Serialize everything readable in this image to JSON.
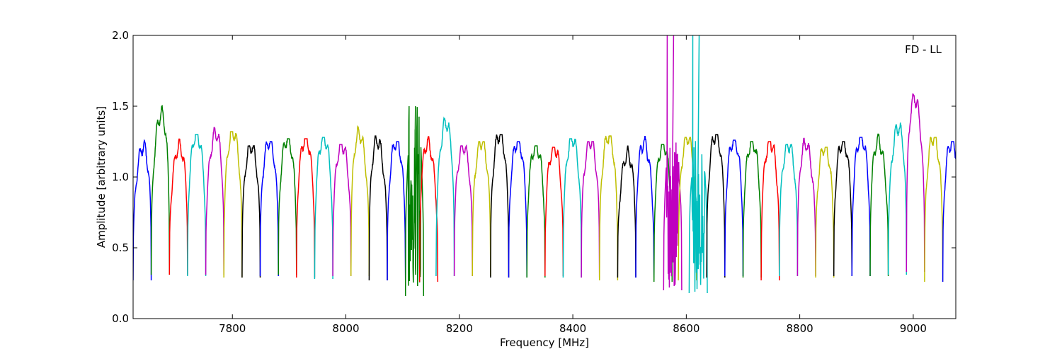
{
  "chart_data": {
    "type": "line",
    "title": "",
    "annotation": "FD - LL",
    "xlabel": "Frequency [MHz]",
    "ylabel": "Amplitude [arbitrary units]",
    "xlim": [
      7625,
      9075
    ],
    "ylim": [
      0.0,
      2.0
    ],
    "x_ticks": [
      7800,
      8000,
      8200,
      8400,
      8600,
      8800,
      9000
    ],
    "x_tick_labels": [
      "7800",
      "8000",
      "8200",
      "8400",
      "8600",
      "8800",
      "9000"
    ],
    "y_ticks": [
      0.0,
      0.5,
      1.0,
      1.5,
      2.0
    ],
    "y_tick_labels": [
      "0.0",
      "0.5",
      "1.0",
      "1.5",
      "2.0"
    ],
    "grid": false,
    "legend": "none",
    "channel_width_mhz": 32,
    "color_cycle": [
      "#0000ff",
      "#008000",
      "#ff0000",
      "#00bfbf",
      "#bf00bf",
      "#bfbf00",
      "#000000"
    ],
    "series": [
      {
        "x_start": 7625,
        "peak": 1.3,
        "min": 0.27,
        "color": "#0000ff",
        "shape": "rising"
      },
      {
        "x_start": 7657,
        "peak": 1.55,
        "min": 0.31,
        "color": "#008000",
        "shape": "rising"
      },
      {
        "x_start": 7689,
        "peak": 1.3,
        "min": 0.31,
        "color": "#ff0000",
        "shape": "rising"
      },
      {
        "x_start": 7721,
        "peak": 1.3,
        "min": 0.3,
        "color": "#00bfbf",
        "shape": "plateau"
      },
      {
        "x_start": 7753,
        "peak": 1.4,
        "min": 0.31,
        "color": "#bf00bf",
        "shape": "rising"
      },
      {
        "x_start": 7785,
        "peak": 1.32,
        "min": 0.29,
        "color": "#bfbf00",
        "shape": "plateau"
      },
      {
        "x_start": 7817,
        "peak": 1.22,
        "min": 0.29,
        "color": "#000000",
        "shape": "plateau"
      },
      {
        "x_start": 7849,
        "peak": 1.25,
        "min": 0.3,
        "color": "#0000ff",
        "shape": "plateau"
      },
      {
        "x_start": 7881,
        "peak": 1.27,
        "min": 0.31,
        "color": "#008000",
        "shape": "plateau"
      },
      {
        "x_start": 7913,
        "peak": 1.27,
        "min": 0.29,
        "color": "#ff0000",
        "shape": "plateau"
      },
      {
        "x_start": 7945,
        "peak": 1.28,
        "min": 0.28,
        "color": "#00bfbf",
        "shape": "plateau"
      },
      {
        "x_start": 7977,
        "peak": 1.23,
        "min": 0.3,
        "color": "#bf00bf",
        "shape": "plateau"
      },
      {
        "x_start": 8009,
        "peak": 1.4,
        "min": 0.3,
        "color": "#bfbf00",
        "shape": "falling"
      },
      {
        "x_start": 8041,
        "peak": 1.35,
        "min": 0.27,
        "color": "#000000",
        "shape": "falling"
      },
      {
        "x_start": 8073,
        "peak": 1.25,
        "min": 0.27,
        "color": "#0000ff",
        "shape": "plateau"
      },
      {
        "x_start": 8105,
        "peak": 1.5,
        "min": 0.16,
        "color": "#008000",
        "shape": "spiky"
      },
      {
        "x_start": 8130,
        "peak": 1.33,
        "min": 0.26,
        "color": "#ff0000",
        "shape": "falling"
      },
      {
        "x_start": 8159,
        "peak": 1.48,
        "min": 0.3,
        "color": "#00bfbf",
        "shape": "rising"
      },
      {
        "x_start": 8191,
        "peak": 1.22,
        "min": 0.3,
        "color": "#bf00bf",
        "shape": "plateau"
      },
      {
        "x_start": 8223,
        "peak": 1.25,
        "min": 0.3,
        "color": "#bfbf00",
        "shape": "plateau"
      },
      {
        "x_start": 8255,
        "peak": 1.3,
        "min": 0.29,
        "color": "#000000",
        "shape": "plateau"
      },
      {
        "x_start": 8287,
        "peak": 1.25,
        "min": 0.29,
        "color": "#0000ff",
        "shape": "plateau"
      },
      {
        "x_start": 8319,
        "peak": 1.22,
        "min": 0.29,
        "color": "#008000",
        "shape": "plateau"
      },
      {
        "x_start": 8351,
        "peak": 1.21,
        "min": 0.3,
        "color": "#ff0000",
        "shape": "plateau"
      },
      {
        "x_start": 8383,
        "peak": 1.27,
        "min": 0.29,
        "color": "#00bfbf",
        "shape": "plateau"
      },
      {
        "x_start": 8415,
        "peak": 1.25,
        "min": 0.29,
        "color": "#bf00bf",
        "shape": "plateau"
      },
      {
        "x_start": 8447,
        "peak": 1.29,
        "min": 0.27,
        "color": "#bfbf00",
        "shape": "plateau"
      },
      {
        "x_start": 8479,
        "peak": 1.24,
        "min": 0.29,
        "color": "#000000",
        "shape": "rising"
      },
      {
        "x_start": 8511,
        "peak": 1.33,
        "min": 0.29,
        "color": "#0000ff",
        "shape": "falling"
      },
      {
        "x_start": 8543,
        "peak": 1.23,
        "min": 0.26,
        "color": "#008000",
        "shape": "plateau"
      },
      {
        "x_start": 8560,
        "peak": 2.0,
        "min": 0.2,
        "color": "#bf00bf",
        "shape": "spiky"
      },
      {
        "x_start": 8586,
        "peak": 1.28,
        "min": 0.27,
        "color": "#bfbf00",
        "shape": "plateau"
      },
      {
        "x_start": 8605,
        "peak": 2.0,
        "min": 0.18,
        "color": "#00bfbf",
        "shape": "spiky"
      },
      {
        "x_start": 8636,
        "peak": 1.3,
        "min": 0.29,
        "color": "#000000",
        "shape": "plateau"
      },
      {
        "x_start": 8668,
        "peak": 1.26,
        "min": 0.3,
        "color": "#0000ff",
        "shape": "plateau"
      },
      {
        "x_start": 8700,
        "peak": 1.25,
        "min": 0.29,
        "color": "#008000",
        "shape": "plateau"
      },
      {
        "x_start": 8732,
        "peak": 1.25,
        "min": 0.27,
        "color": "#ff0000",
        "shape": "plateau"
      },
      {
        "x_start": 8764,
        "peak": 1.23,
        "min": 0.3,
        "color": "#00bfbf",
        "shape": "plateau"
      },
      {
        "x_start": 8796,
        "peak": 1.32,
        "min": 0.3,
        "color": "#bf00bf",
        "shape": "falling"
      },
      {
        "x_start": 8828,
        "peak": 1.21,
        "min": 0.29,
        "color": "#bfbf00",
        "shape": "plateau"
      },
      {
        "x_start": 8860,
        "peak": 1.25,
        "min": 0.3,
        "color": "#000000",
        "shape": "plateau"
      },
      {
        "x_start": 8892,
        "peak": 1.28,
        "min": 0.3,
        "color": "#0000ff",
        "shape": "plateau"
      },
      {
        "x_start": 8924,
        "peak": 1.34,
        "min": 0.3,
        "color": "#008000",
        "shape": "falling"
      },
      {
        "x_start": 8956,
        "peak": 1.45,
        "min": 0.31,
        "color": "#00bfbf",
        "shape": "rising"
      },
      {
        "x_start": 8988,
        "peak": 1.67,
        "min": 0.33,
        "color": "#bf00bf",
        "shape": "falling"
      },
      {
        "x_start": 9020,
        "peak": 1.28,
        "min": 0.26,
        "color": "#bfbf00",
        "shape": "plateau"
      },
      {
        "x_start": 9052,
        "peak": 1.25,
        "min": 0.26,
        "color": "#0000ff",
        "shape": "plateau"
      }
    ]
  }
}
